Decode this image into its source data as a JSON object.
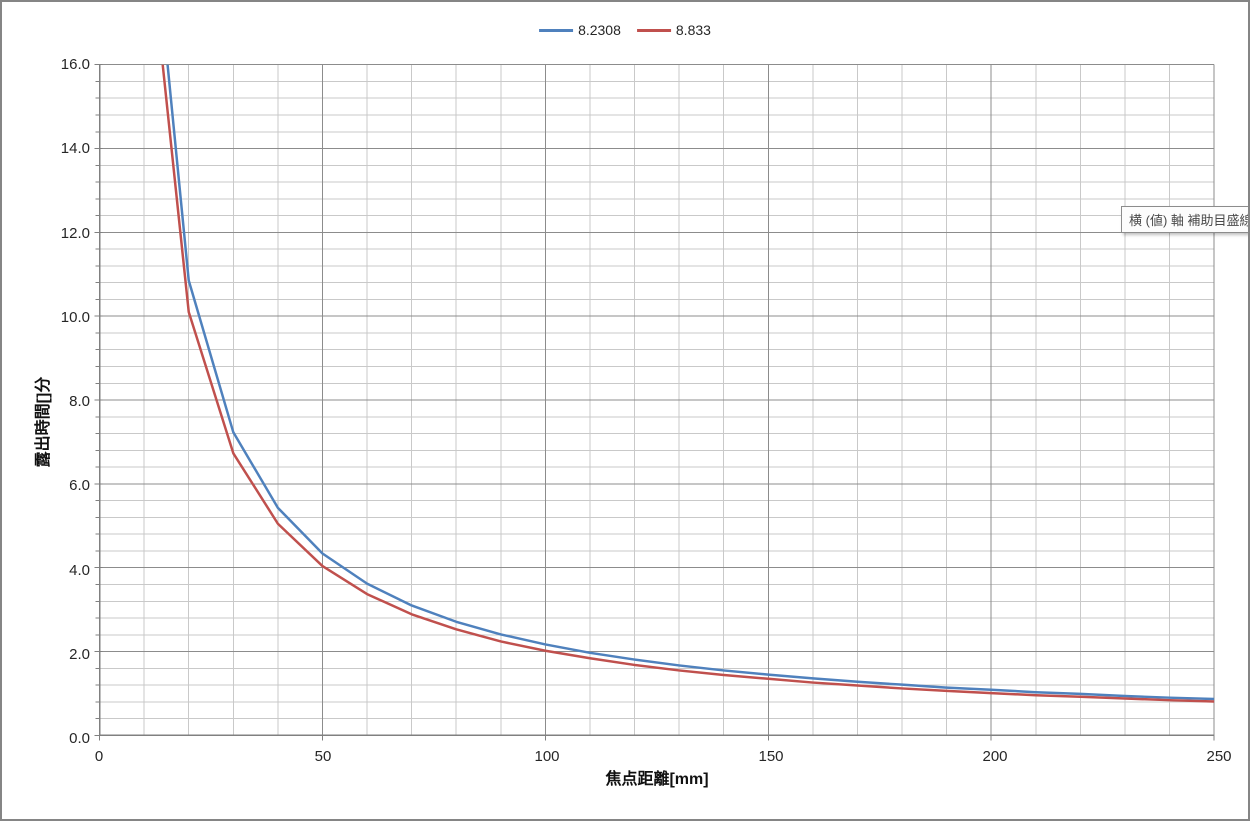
{
  "tooltip": {
    "text": "横 (値) 軸 補助目盛線"
  },
  "colors": {
    "minor_grid": "#C9C9C9",
    "major_grid": "#8C8C8C",
    "axis": "#808080",
    "tick_text": "#262626"
  },
  "chart_data": {
    "type": "line",
    "title": "",
    "xlabel": "焦点距離[mm]",
    "ylabel": "露出時間[]分",
    "xlim": [
      0,
      250
    ],
    "ylim": [
      0,
      16.0
    ],
    "x_major_unit": 50,
    "x_minor_unit": 10,
    "y_major_unit": 2.0,
    "y_minor_unit": 0.4,
    "grid": "major+minor both axes",
    "legend_position": "top",
    "x_tick_labels": [
      "0",
      "50",
      "100",
      "150",
      "200",
      "250"
    ],
    "y_tick_labels": [
      "0.0",
      "2.0",
      "4.0",
      "6.0",
      "8.0",
      "10.0",
      "12.0",
      "14.0",
      "16.0"
    ],
    "x": [
      10,
      20,
      30,
      40,
      50,
      60,
      70,
      80,
      90,
      100,
      110,
      120,
      130,
      140,
      150,
      160,
      170,
      180,
      190,
      200,
      210,
      220,
      230,
      240,
      250
    ],
    "series": [
      {
        "name": "8.2308",
        "color": "#4F81BD",
        "values": [
          21.7,
          10.85,
          7.23,
          5.43,
          4.34,
          3.62,
          3.1,
          2.71,
          2.41,
          2.17,
          1.97,
          1.81,
          1.67,
          1.55,
          1.45,
          1.36,
          1.28,
          1.21,
          1.14,
          1.09,
          1.03,
          0.99,
          0.94,
          0.9,
          0.87
        ]
      },
      {
        "name": "8.833",
        "color": "#C0504D",
        "values": [
          20.2,
          10.1,
          6.73,
          5.05,
          4.04,
          3.37,
          2.89,
          2.53,
          2.24,
          2.02,
          1.84,
          1.68,
          1.55,
          1.44,
          1.35,
          1.26,
          1.19,
          1.12,
          1.06,
          1.01,
          0.96,
          0.92,
          0.88,
          0.84,
          0.81
        ]
      }
    ]
  }
}
